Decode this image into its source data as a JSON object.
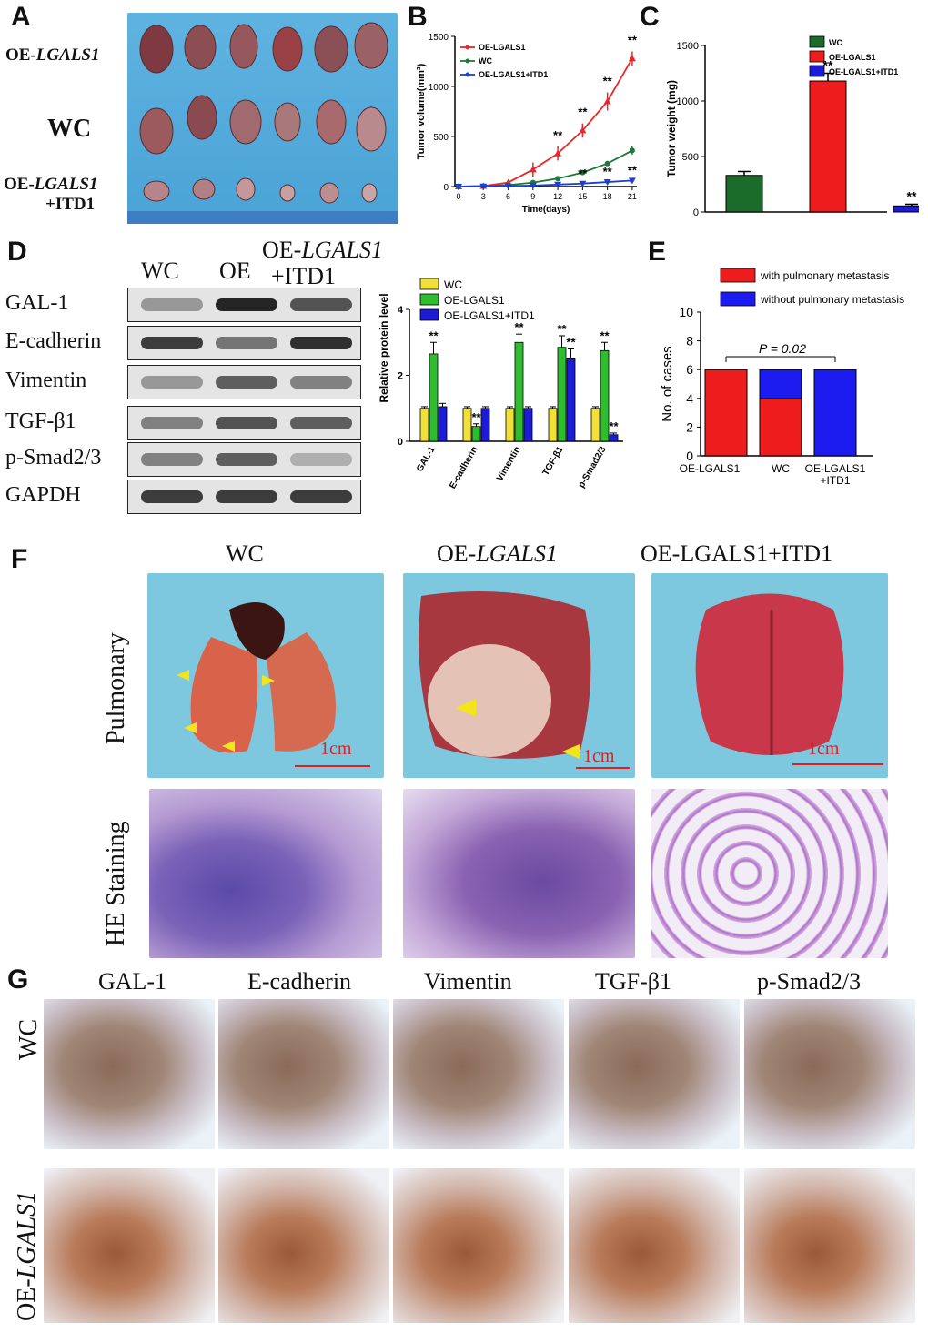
{
  "panels": {
    "A": "A",
    "B": "B",
    "C": "C",
    "D": "D",
    "E": "E",
    "F": "F",
    "G": "G"
  },
  "panel_a": {
    "rows": [
      "OE-LGALS1",
      "WC",
      "OE-LGALS1",
      "+ITD1"
    ],
    "row1_prefix": "OE-",
    "row1_gene": "LGALS1",
    "row2": "WC",
    "row3_prefix": "OE-",
    "row3_gene": "LGALS1",
    "row3_suffix": "+ITD1"
  },
  "panel_d": {
    "lanes": [
      "WC",
      "OE",
      "OE-LGALS1",
      "+ITD1"
    ],
    "lane_wc": "WC",
    "lane_oe": "OE",
    "lane_3_prefix": "OE-",
    "lane_3_gene": "LGALS1",
    "lane_3_suffix": "+ITD1",
    "proteins": [
      "GAL-1",
      "E-cadherin",
      "Vimentin",
      "TGF-β1",
      "p-Smad2/3",
      "GAPDH"
    ]
  },
  "panel_f": {
    "cols": [
      "WC",
      "OE-LGALS1",
      "OE-LGALS1+ITD1"
    ],
    "col1": "WC",
    "col2_prefix": "OE-",
    "col2_gene": "LGALS1",
    "col3_prefix": "OE-LGALS1",
    "col3_suffix": "+ITD1",
    "rows": [
      "Pulmonary",
      "HE Staining"
    ],
    "scale": "1cm"
  },
  "panel_g": {
    "cols": [
      "GAL-1",
      "E-cadherin",
      "Vimentin",
      "TGF-β1",
      "p-Smad2/3"
    ],
    "rows": [
      "WC",
      "OE-LGALS1"
    ],
    "row2_prefix": "OE-",
    "row2_gene": "LGALS1"
  },
  "chart_data": [
    {
      "id": "B",
      "type": "line",
      "xlabel": "Time(days)",
      "ylabel": "Tumor volume(mm³)",
      "x": [
        0,
        3,
        6,
        9,
        12,
        15,
        18,
        21
      ],
      "ylim": [
        0,
        1500
      ],
      "yticks": [
        0,
        500,
        1000,
        1500
      ],
      "legend": [
        "OE-LGALS1",
        "WC",
        "OE-LGALS1+ITD1"
      ],
      "series": [
        {
          "name": "OE-LGALS1",
          "color": "#e8262b",
          "marker": "triangle",
          "values": [
            0,
            5,
            40,
            170,
            330,
            560,
            850,
            1280
          ],
          "err": [
            0,
            5,
            10,
            70,
            70,
            70,
            90,
            70
          ]
        },
        {
          "name": "WC",
          "color": "#1b7a35",
          "marker": "circle",
          "values": [
            0,
            5,
            15,
            40,
            80,
            140,
            230,
            360
          ],
          "err": [
            0,
            3,
            5,
            10,
            15,
            15,
            25,
            40
          ]
        },
        {
          "name": "OE-LGALS1+ITD1",
          "color": "#1c3fd0",
          "marker": "triangle-down",
          "values": [
            0,
            2,
            5,
            10,
            20,
            30,
            45,
            60
          ],
          "err": [
            0,
            1,
            2,
            3,
            5,
            5,
            8,
            10
          ]
        }
      ],
      "annotations": [
        {
          "x": 12,
          "series": "OE-LGALS1",
          "text": "**"
        },
        {
          "x": 15,
          "series": "OE-LGALS1",
          "text": "**"
        },
        {
          "x": 18,
          "series": "OE-LGALS1",
          "text": "**"
        },
        {
          "x": 21,
          "series": "OE-LGALS1",
          "text": "**"
        },
        {
          "x": 15,
          "series": "OE-LGALS1+ITD1",
          "text": "**"
        },
        {
          "x": 18,
          "series": "OE-LGALS1+ITD1",
          "text": "**"
        },
        {
          "x": 21,
          "series": "OE-LGALS1+ITD1",
          "text": "**"
        }
      ]
    },
    {
      "id": "C",
      "type": "bar",
      "ylabel": "Tumor weight (mg)",
      "ylim": [
        0,
        1500
      ],
      "yticks": [
        0,
        500,
        1000,
        1500
      ],
      "categories": [
        "WC",
        "OE-LGALS1",
        "OE-LGALS1+ITD1"
      ],
      "values": [
        330,
        1180,
        55
      ],
      "err": [
        35,
        70,
        15
      ],
      "colors": [
        "#1b6b2a",
        "#ee1c1c",
        "#1c1cd8"
      ],
      "annotations": [
        "",
        "**",
        "**"
      ]
    },
    {
      "id": "D",
      "type": "bar",
      "ylabel": "Relative protein level",
      "ylim": [
        0,
        4
      ],
      "yticks": [
        0,
        2,
        4
      ],
      "categories": [
        "GAL-1",
        "E-cadherin",
        "Vimentin",
        "TGF-β1",
        "p-Smad2/3"
      ],
      "series": [
        {
          "name": "WC",
          "color": "#f2e03a",
          "values": [
            1.0,
            1.0,
            1.0,
            1.0,
            1.0
          ],
          "err": [
            0.05,
            0.05,
            0.05,
            0.05,
            0.05
          ]
        },
        {
          "name": "OE-LGALS1",
          "color": "#2ebd2e",
          "values": [
            2.65,
            0.45,
            3.0,
            2.85,
            2.75
          ],
          "err": [
            0.35,
            0.08,
            0.25,
            0.35,
            0.25
          ]
        },
        {
          "name": "OE-LGALS1+ITD1",
          "color": "#1c1cd8",
          "values": [
            1.05,
            1.0,
            1.0,
            2.5,
            0.2
          ],
          "err": [
            0.1,
            0.05,
            0.05,
            0.3,
            0.05
          ]
        }
      ],
      "annotations": [
        {
          "category": "GAL-1",
          "series": "OE-LGALS1",
          "text": "**"
        },
        {
          "category": "E-cadherin",
          "series": "OE-LGALS1",
          "text": "**"
        },
        {
          "category": "Vimentin",
          "series": "OE-LGALS1",
          "text": "**"
        },
        {
          "category": "TGF-β1",
          "series": "OE-LGALS1",
          "text": "**"
        },
        {
          "category": "TGF-β1",
          "series": "OE-LGALS1+ITD1",
          "text": "**"
        },
        {
          "category": "p-Smad2/3",
          "series": "OE-LGALS1",
          "text": "**"
        },
        {
          "category": "p-Smad2/3",
          "series": "OE-LGALS1+ITD1",
          "text": "**"
        }
      ]
    },
    {
      "id": "E",
      "type": "bar",
      "stacked": true,
      "ylabel": "No. of cases",
      "ylim": [
        0,
        10
      ],
      "yticks": [
        0,
        2,
        4,
        6,
        8,
        10
      ],
      "categories": [
        "OE-LGALS1",
        "WC",
        "OE-LGALS1+ITD1"
      ],
      "series": [
        {
          "name": "with pulmonary metastasis",
          "color": "#ee1c1c",
          "values": [
            6,
            4,
            0
          ]
        },
        {
          "name": "without pulmonary metastasis",
          "color": "#1c1cf0",
          "values": [
            0,
            2,
            6
          ]
        }
      ],
      "pvalue": "P = 0.02"
    }
  ]
}
